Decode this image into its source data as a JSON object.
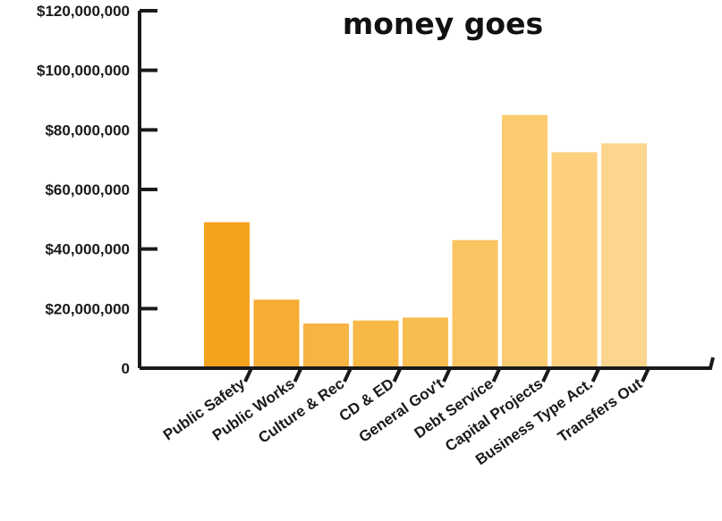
{
  "chart_data": {
    "type": "bar",
    "title": "money goes",
    "categories": [
      "Public Safety",
      "Public Works",
      "Culture & Rec",
      "CD & ED",
      "General Gov't",
      "Debt Service",
      "Capital Projects",
      "Business Type Act.",
      "Transfers Out"
    ],
    "values": [
      49000000,
      23000000,
      15000000,
      16000000,
      17000000,
      43000000,
      85000000,
      72500000,
      75500000
    ],
    "ylim": [
      0,
      120000000
    ],
    "yticks": [
      0,
      20000000,
      40000000,
      60000000,
      80000000,
      100000000,
      120000000
    ],
    "ytick_labels": [
      "0",
      "$20,000,000",
      "$40,000,000",
      "$60,000,000",
      "$80,000,000",
      "$100,000,000",
      "$120,000,000"
    ],
    "xlabel": "",
    "ylabel": "",
    "grid": false,
    "colors": [
      "#f5a21f",
      "#f6ad35",
      "#f7b444",
      "#f7b845",
      "#f8bd50",
      "#f9c462",
      "#fbcb71",
      "#fcd07f",
      "#fcd68e"
    ],
    "axis_color": "#1a1a1a"
  }
}
